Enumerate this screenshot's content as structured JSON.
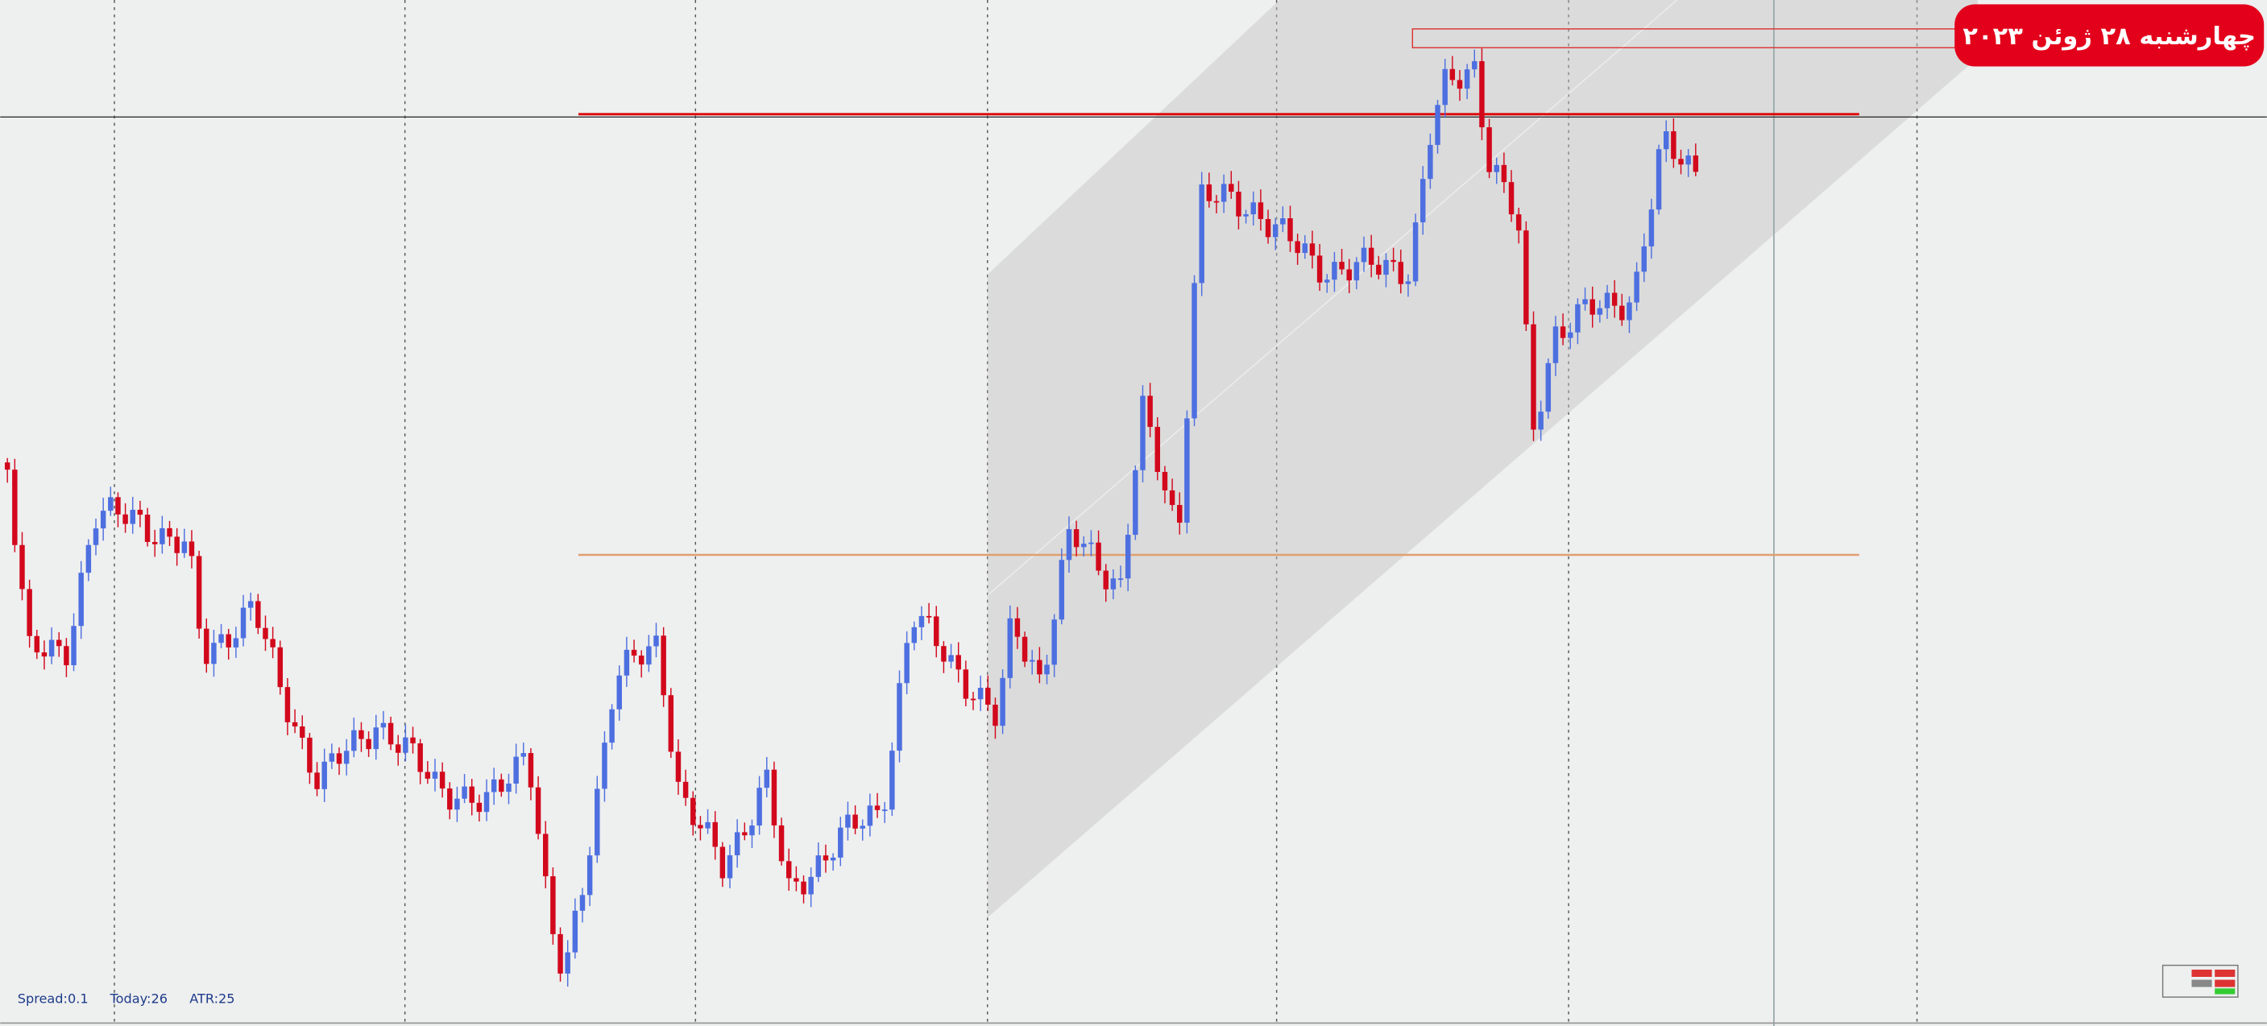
{
  "header": {
    "date_badge": "چهارشنبه ۲۸ ژوئن ۲۰۲۳"
  },
  "status_bar": {
    "spread": "Spread:0.1",
    "today": "Today:26",
    "atr": "ATR:25"
  }
}
